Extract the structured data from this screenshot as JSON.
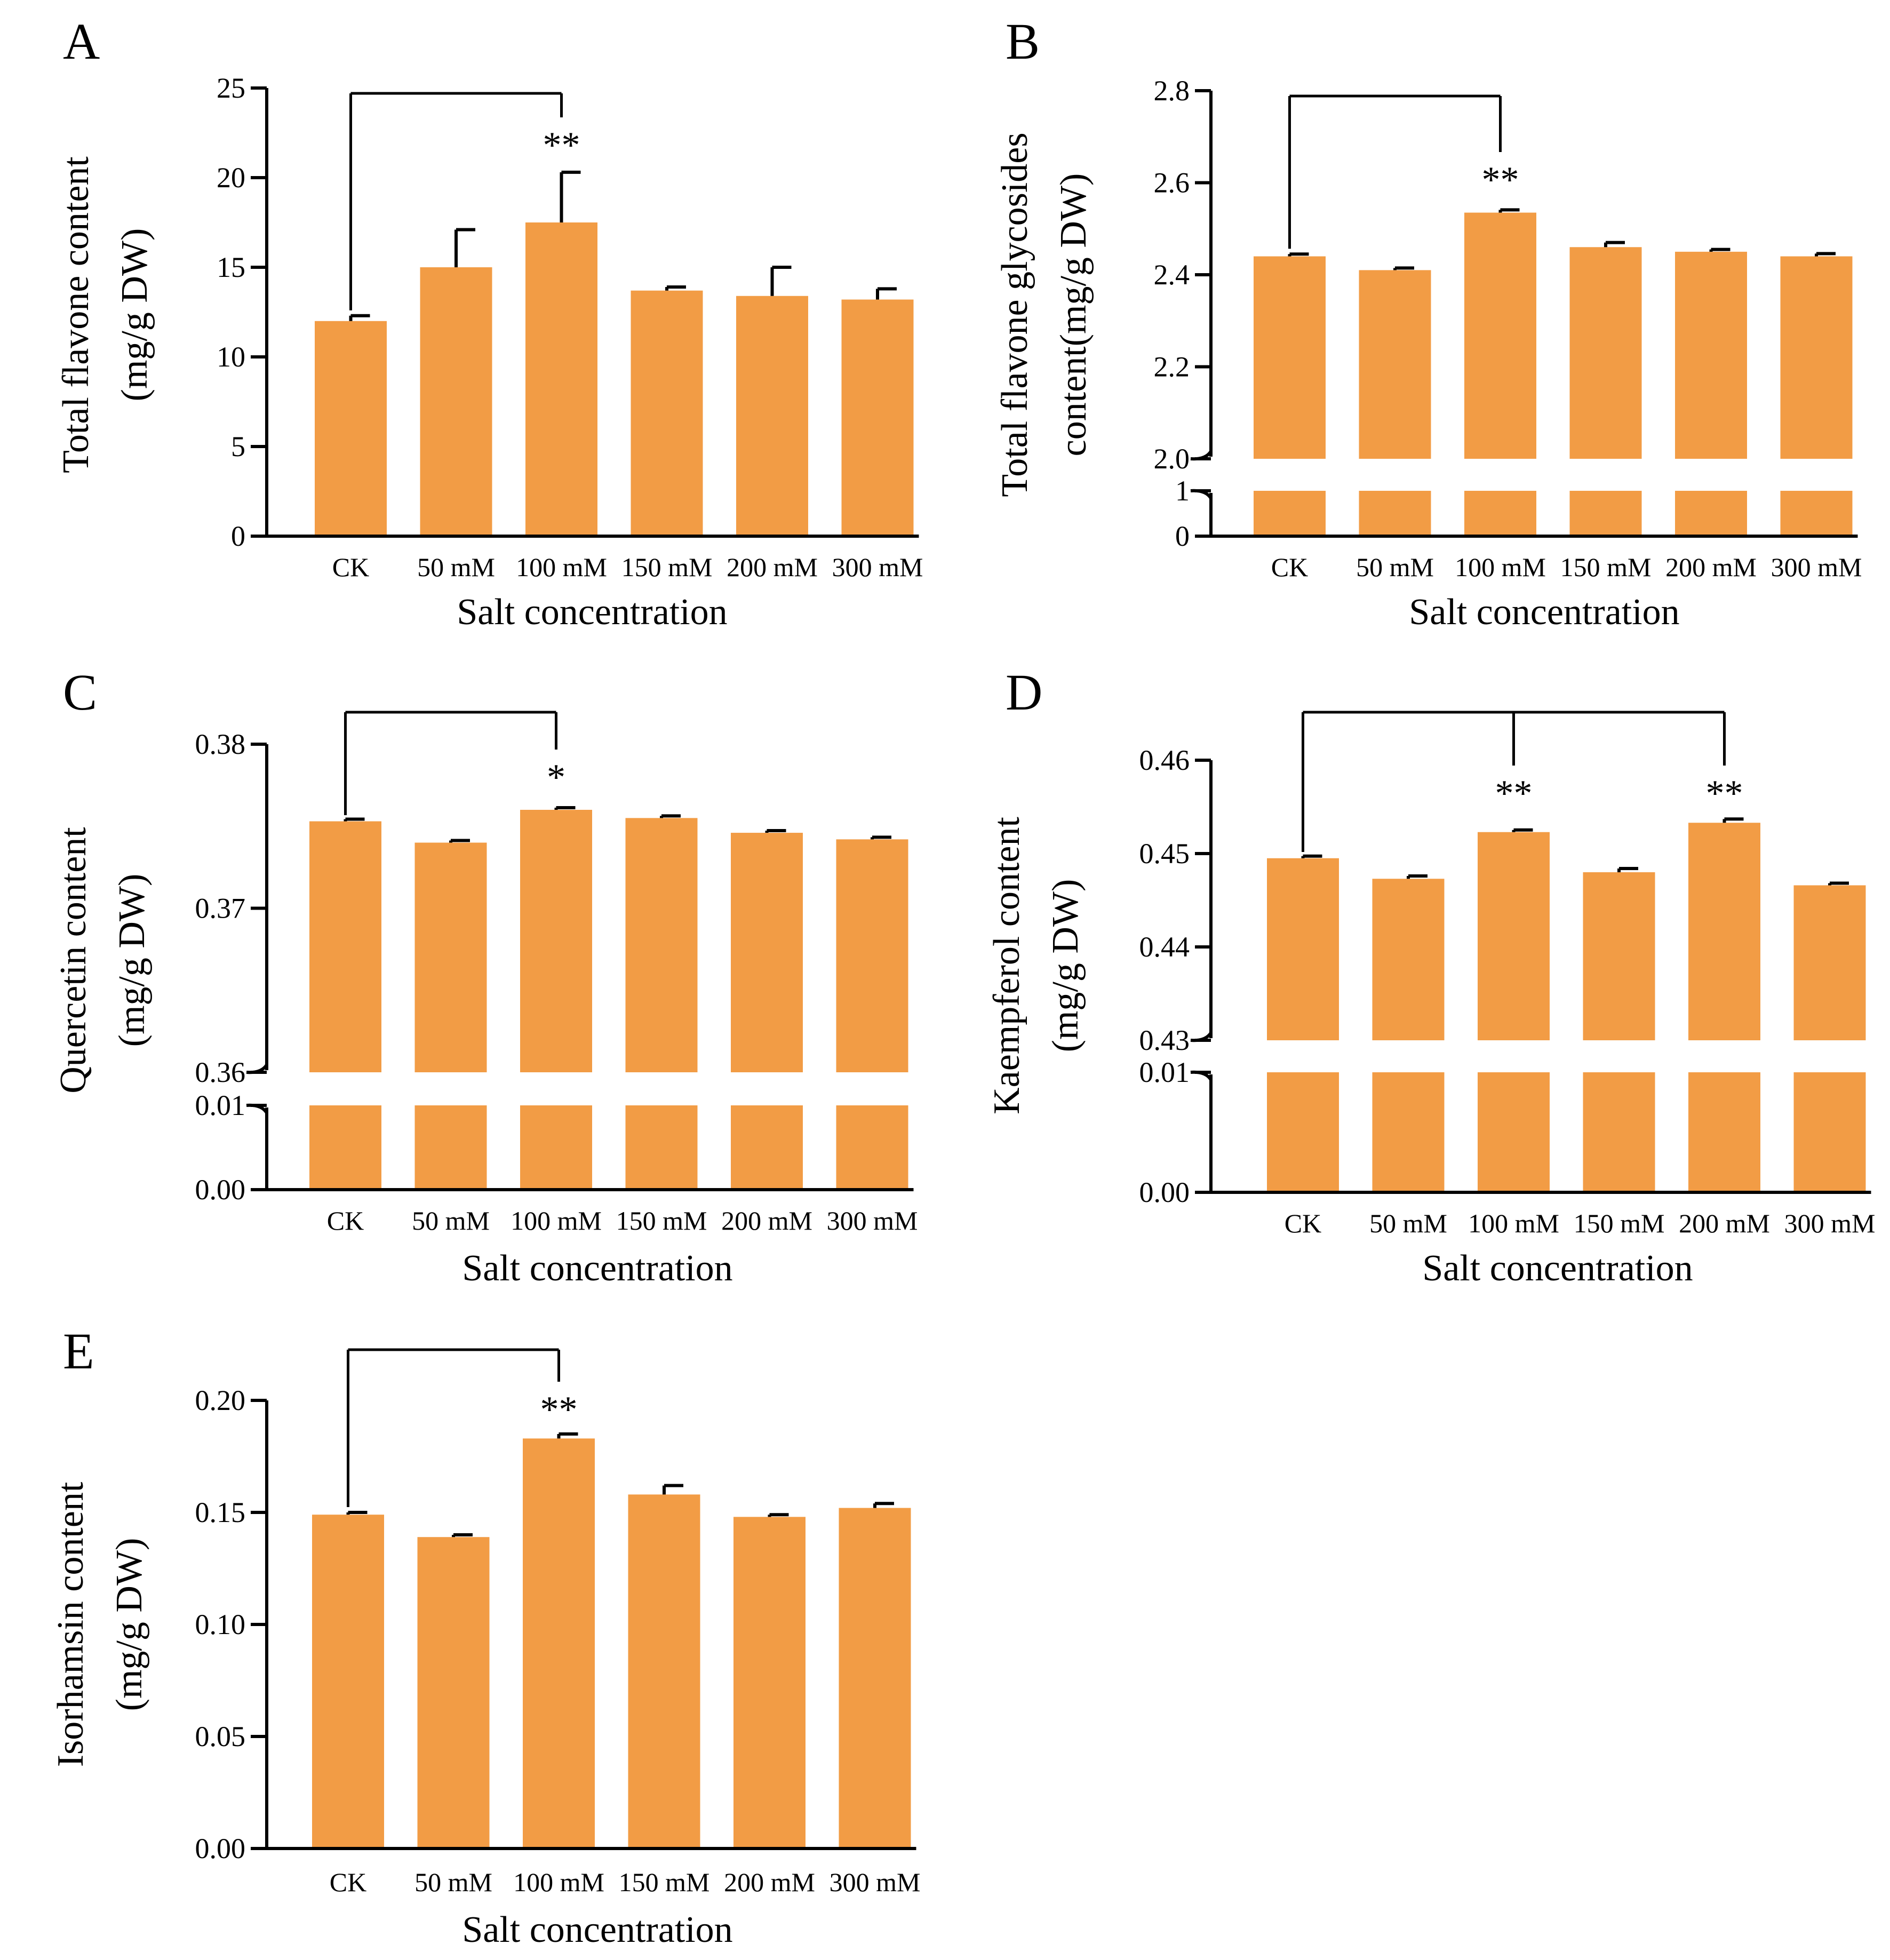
{
  "colors": {
    "bar": "#F29C45",
    "axis": "#000000",
    "background": "#ffffff"
  },
  "chart_data": [
    {
      "panel": "A",
      "type": "bar",
      "categories": [
        "CK",
        "50 mM",
        "100 mM",
        "150 mM",
        "200 mM",
        "300 mM"
      ],
      "values": [
        12.0,
        15.0,
        17.5,
        13.7,
        13.4,
        13.2
      ],
      "errors": [
        0.3,
        2.1,
        2.8,
        0.2,
        1.6,
        0.6
      ],
      "ylim": [
        0,
        25
      ],
      "yticks": [
        0,
        5,
        10,
        15,
        20,
        25
      ],
      "ytick_labels": [
        "0",
        "5",
        "10",
        "15",
        "20",
        "25"
      ],
      "ylabel": [
        "Total flavone content",
        "(mg/g DW)"
      ],
      "xlabel": "Salt concentration",
      "axis_break": null,
      "significance": [
        {
          "from": 0,
          "to": [
            2
          ],
          "labels": [
            "**"
          ]
        }
      ]
    },
    {
      "panel": "B",
      "type": "bar",
      "categories": [
        "CK",
        "50 mM",
        "100 mM",
        "150 mM",
        "200 mM",
        "300 mM"
      ],
      "values": [
        2.44,
        2.41,
        2.535,
        2.46,
        2.45,
        2.44
      ],
      "errors": [
        0.005,
        0.004,
        0.006,
        0.01,
        0.005,
        0.006
      ],
      "ylim": [
        0,
        2.8
      ],
      "yticks": [
        0,
        1,
        2.0,
        2.2,
        2.4,
        2.6,
        2.8
      ],
      "ytick_labels": [
        "0",
        "1",
        "2.0",
        "2.2",
        "2.4",
        "2.6",
        "2.8"
      ],
      "ylabel": [
        "Total flavone glycosides",
        "content(mg/g DW)"
      ],
      "xlabel": "Salt concentration",
      "axis_break": {
        "lower": [
          0,
          1
        ],
        "upper": [
          2.0,
          2.8
        ]
      },
      "significance": [
        {
          "from": 0,
          "to": [
            2
          ],
          "labels": [
            "**"
          ]
        }
      ]
    },
    {
      "panel": "C",
      "type": "bar",
      "categories": [
        "CK",
        "50 mM",
        "100 mM",
        "150 mM",
        "200 mM",
        "300 mM"
      ],
      "values": [
        0.3753,
        0.374,
        0.376,
        0.3755,
        0.3746,
        0.3742
      ],
      "errors": [
        5e-05,
        5e-05,
        5e-05,
        5e-05,
        5e-05,
        5e-05
      ],
      "ylim": [
        0,
        0.38
      ],
      "yticks": [
        0.0,
        0.01,
        0.36,
        0.37,
        0.38
      ],
      "ytick_labels": [
        "0.00",
        "0.01",
        "0.36",
        "0.37",
        "0.38"
      ],
      "ylabel": [
        "Quercetin content",
        "(mg/g DW)"
      ],
      "xlabel": "Salt concentration",
      "axis_break": {
        "lower": [
          0,
          0.01
        ],
        "upper": [
          0.36,
          0.38
        ]
      },
      "significance": [
        {
          "from": 0,
          "to": [
            2
          ],
          "labels": [
            "*"
          ]
        }
      ]
    },
    {
      "panel": "D",
      "type": "bar",
      "categories": [
        "CK",
        "50 mM",
        "100 mM",
        "150 mM",
        "200 mM",
        "300 mM"
      ],
      "values": [
        0.4495,
        0.4473,
        0.4523,
        0.448,
        0.4533,
        0.4466
      ],
      "errors": [
        0.0001,
        0.0003,
        0.0002,
        0.0004,
        0.0004,
        0.0002
      ],
      "ylim": [
        0,
        0.46
      ],
      "yticks": [
        0.0,
        0.01,
        0.43,
        0.44,
        0.45,
        0.46
      ],
      "ytick_labels": [
        "0.00",
        "0.01",
        "0.43",
        "0.44",
        "0.45",
        "0.46"
      ],
      "ylabel": [
        "Kaempferol content",
        "(mg/g DW)"
      ],
      "xlabel": "Salt concentration",
      "axis_break": {
        "lower": [
          0,
          0.01
        ],
        "upper": [
          0.43,
          0.46
        ]
      },
      "significance": [
        {
          "from": 0,
          "to": [
            2,
            4
          ],
          "labels": [
            "**",
            "**"
          ]
        }
      ]
    },
    {
      "panel": "E",
      "type": "bar",
      "categories": [
        "CK",
        "50 mM",
        "100 mM",
        "150 mM",
        "200 mM",
        "300 mM"
      ],
      "values": [
        0.149,
        0.139,
        0.183,
        0.158,
        0.148,
        0.152
      ],
      "errors": [
        0.001,
        0.001,
        0.002,
        0.004,
        0.001,
        0.002
      ],
      "ylim": [
        0,
        0.2
      ],
      "yticks": [
        0.0,
        0.05,
        0.1,
        0.15,
        0.2
      ],
      "ytick_labels": [
        "0.00",
        "0.05",
        "0.10",
        "0.15",
        "0.20"
      ],
      "ylabel": [
        "Isorhamsin content",
        "(mg/g DW)"
      ],
      "xlabel": "Salt concentration",
      "axis_break": null,
      "significance": [
        {
          "from": 0,
          "to": [
            2
          ],
          "labels": [
            "**"
          ]
        }
      ]
    }
  ]
}
